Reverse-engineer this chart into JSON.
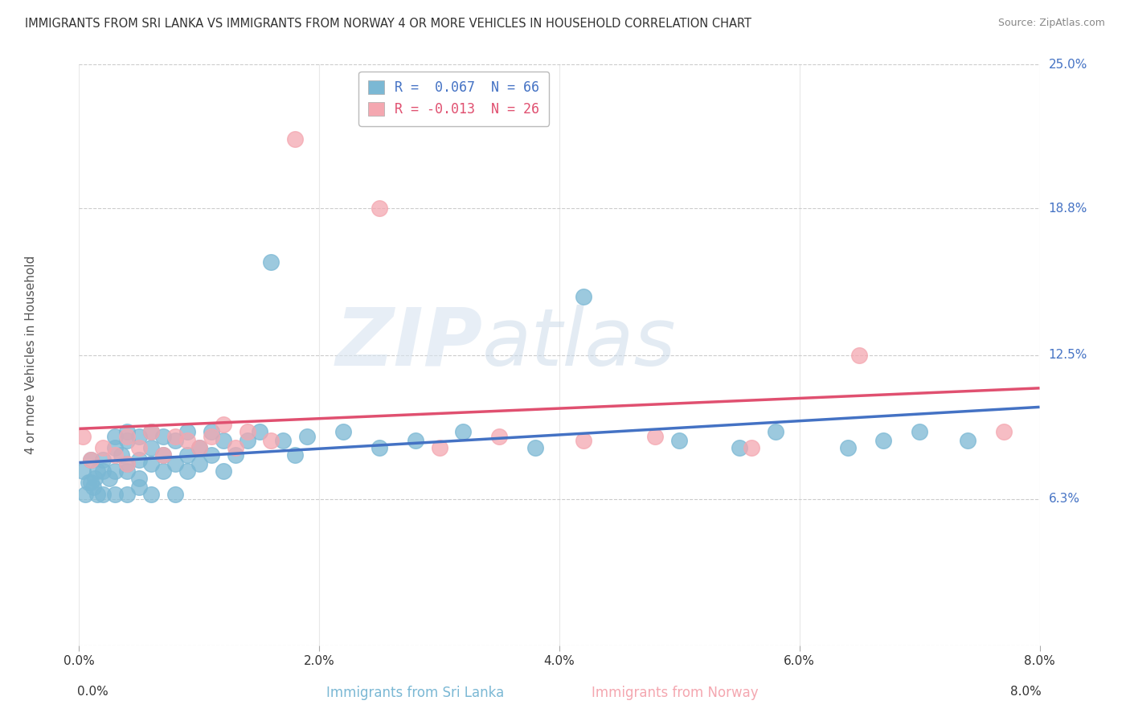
{
  "title": "IMMIGRANTS FROM SRI LANKA VS IMMIGRANTS FROM NORWAY 4 OR MORE VEHICLES IN HOUSEHOLD CORRELATION CHART",
  "source": "Source: ZipAtlas.com",
  "xlabel_sri_lanka": "Immigrants from Sri Lanka",
  "xlabel_norway": "Immigrants from Norway",
  "ylabel": "4 or more Vehicles in Household",
  "r_sri_lanka": 0.067,
  "n_sri_lanka": 66,
  "r_norway": -0.013,
  "n_norway": 26,
  "xlim": [
    0.0,
    0.08
  ],
  "ylim": [
    -0.02,
    0.27
  ],
  "plot_ylim": [
    0.0,
    0.25
  ],
  "xticks": [
    0.0,
    0.02,
    0.04,
    0.06,
    0.08
  ],
  "xtick_labels": [
    "0.0%",
    "2.0%",
    "4.0%",
    "6.0%",
    "8.0%"
  ],
  "ytick_labels_right": [
    "25.0%",
    "18.8%",
    "12.5%",
    "6.3%"
  ],
  "ytick_values_right": [
    0.25,
    0.188,
    0.125,
    0.063
  ],
  "color_sri_lanka": "#7bb8d4",
  "color_norway": "#f4a7b0",
  "color_trendline_sri_lanka": "#4472c4",
  "color_trendline_norway": "#e05070",
  "watermark_zip": "ZIP",
  "watermark_atlas": "atlas",
  "legend_label_sl": "R =  0.067  N = 66",
  "legend_label_no": "R = -0.013  N = 26",
  "sri_lanka_x": [
    0.0003,
    0.0005,
    0.0008,
    0.001,
    0.001,
    0.0012,
    0.0013,
    0.0015,
    0.0015,
    0.002,
    0.002,
    0.002,
    0.0025,
    0.003,
    0.003,
    0.003,
    0.003,
    0.0035,
    0.004,
    0.004,
    0.004,
    0.004,
    0.004,
    0.005,
    0.005,
    0.005,
    0.005,
    0.006,
    0.006,
    0.006,
    0.006,
    0.007,
    0.007,
    0.007,
    0.008,
    0.008,
    0.008,
    0.009,
    0.009,
    0.009,
    0.01,
    0.01,
    0.011,
    0.011,
    0.012,
    0.012,
    0.013,
    0.014,
    0.015,
    0.016,
    0.017,
    0.018,
    0.019,
    0.022,
    0.025,
    0.028,
    0.032,
    0.038,
    0.042,
    0.05,
    0.055,
    0.058,
    0.064,
    0.067,
    0.07,
    0.074
  ],
  "sri_lanka_y": [
    0.075,
    0.065,
    0.07,
    0.07,
    0.08,
    0.068,
    0.072,
    0.075,
    0.065,
    0.08,
    0.075,
    0.065,
    0.072,
    0.085,
    0.075,
    0.065,
    0.09,
    0.082,
    0.078,
    0.088,
    0.075,
    0.092,
    0.065,
    0.08,
    0.09,
    0.072,
    0.068,
    0.085,
    0.078,
    0.092,
    0.065,
    0.082,
    0.09,
    0.075,
    0.088,
    0.078,
    0.065,
    0.092,
    0.082,
    0.075,
    0.085,
    0.078,
    0.092,
    0.082,
    0.088,
    0.075,
    0.082,
    0.088,
    0.092,
    0.165,
    0.088,
    0.082,
    0.09,
    0.092,
    0.085,
    0.088,
    0.092,
    0.085,
    0.15,
    0.088,
    0.085,
    0.092,
    0.085,
    0.088,
    0.092,
    0.088
  ],
  "norway_x": [
    0.0003,
    0.001,
    0.002,
    0.003,
    0.004,
    0.004,
    0.005,
    0.006,
    0.007,
    0.008,
    0.009,
    0.01,
    0.011,
    0.012,
    0.013,
    0.014,
    0.016,
    0.018,
    0.025,
    0.03,
    0.035,
    0.042,
    0.048,
    0.056,
    0.065,
    0.077
  ],
  "norway_y": [
    0.09,
    0.08,
    0.085,
    0.082,
    0.09,
    0.078,
    0.085,
    0.092,
    0.082,
    0.09,
    0.088,
    0.085,
    0.09,
    0.095,
    0.085,
    0.092,
    0.088,
    0.218,
    0.188,
    0.085,
    0.09,
    0.088,
    0.09,
    0.085,
    0.125,
    0.092
  ]
}
